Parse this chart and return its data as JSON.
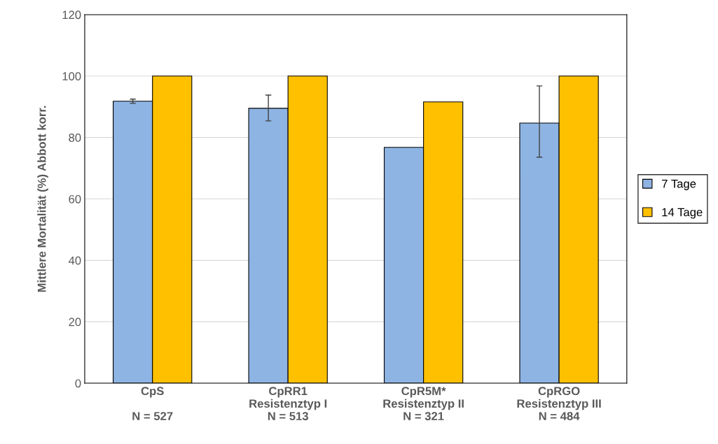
{
  "chart_data": {
    "type": "bar",
    "ylabel": "Mittlere Mortalität (%) Abbott korr.",
    "categories": [
      "CpS\n\nN = 527",
      "CpRR1\nResistenztyp I\nN = 513",
      "CpR5M*\nResistenztyp II\nN = 321",
      "CpRGO\nResistenztyp III\nN = 484"
    ],
    "series": [
      {
        "name": "7 Tage",
        "color": "#8eb4e3",
        "values": [
          91.8,
          89.5,
          76.8,
          84.7
        ],
        "errors": [
          [
            91.1,
            92.5
          ],
          [
            85.4,
            93.8
          ],
          null,
          [
            73.6,
            96.8
          ]
        ]
      },
      {
        "name": "14 Tage",
        "color": "#ffc000",
        "values": [
          100,
          100,
          91.6,
          100
        ]
      }
    ],
    "ylim": [
      0,
      120
    ],
    "yticks": [
      0,
      20,
      40,
      60,
      80,
      100,
      120
    ],
    "grid": "y",
    "legend": "right"
  }
}
